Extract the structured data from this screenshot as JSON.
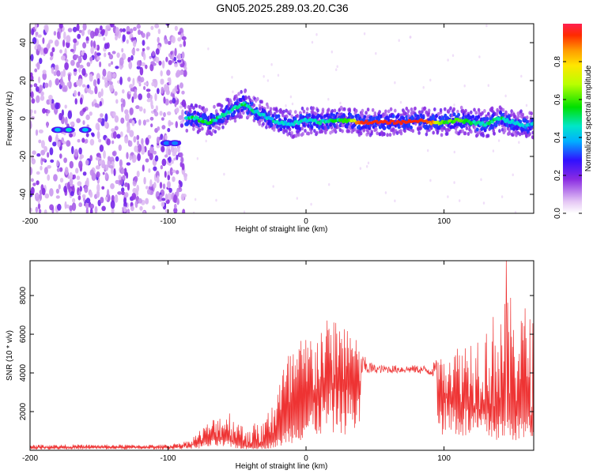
{
  "title": "GN05.2025.289.03.20.C36",
  "chart_data": [
    {
      "type": "heatmap",
      "name": "spectrogram",
      "xlabel": "Height of straight line (km)",
      "ylabel": "Frequency (Hz)",
      "xlim": [
        -200,
        165
      ],
      "ylim": [
        -50,
        50
      ],
      "xticks": [
        -200,
        -100,
        0,
        100
      ],
      "yticks": [
        -40,
        -20,
        0,
        20,
        40
      ],
      "colorbar": {
        "label": "Normalized spectral amplitude",
        "range": [
          0,
          1
        ],
        "ticks": [
          0.0,
          0.2,
          0.4,
          0.6,
          0.8
        ]
      },
      "noise_region": {
        "x_from": -200,
        "x_to": -87
      },
      "ridge": {
        "x": [
          -87,
          -80,
          -70,
          -60,
          -50,
          -45,
          -40,
          -30,
          -20,
          -10,
          0,
          10,
          20,
          30,
          40,
          50,
          60,
          70,
          80,
          90,
          100,
          110,
          120,
          130,
          140,
          150,
          160,
          165
        ],
        "freq": [
          0,
          0,
          -2,
          2,
          6,
          8,
          5,
          1,
          -2,
          -3,
          -1,
          -2,
          -1,
          -1,
          -2,
          -2,
          -2,
          -2,
          -1,
          -2,
          -2,
          -1,
          -2,
          -3,
          0,
          -2,
          -4,
          -3
        ],
        "amplitude": [
          0.45,
          0.5,
          0.5,
          0.45,
          0.45,
          0.5,
          0.45,
          0.4,
          0.45,
          0.4,
          0.45,
          0.45,
          0.5,
          0.55,
          0.95,
          0.95,
          0.95,
          0.95,
          0.95,
          0.9,
          0.55,
          0.6,
          0.5,
          0.45,
          0.5,
          0.45,
          0.4,
          0.4
        ]
      },
      "extra_blobs": [
        {
          "x": -160,
          "freq": -6,
          "amplitude": 0.4
        },
        {
          "x": -172,
          "freq": -6,
          "amplitude": 0.45
        },
        {
          "x": -180,
          "freq": -6,
          "amplitude": 0.4
        },
        {
          "x": -101,
          "freq": -13,
          "amplitude": 0.35
        },
        {
          "x": -95,
          "freq": -13,
          "amplitude": 0.35
        }
      ]
    },
    {
      "type": "line",
      "name": "snr",
      "xlabel": "Height of straight line (km)",
      "ylabel": "SNR (10 * v/v)",
      "xlim": [
        -200,
        165
      ],
      "ylim": [
        0,
        9800
      ],
      "xticks": [
        -200,
        -100,
        0,
        100
      ],
      "yticks": [
        2000,
        4000,
        6000,
        8000
      ],
      "color": "#ee3333",
      "envelope": {
        "x": [
          -200,
          -150,
          -100,
          -85,
          -75,
          -65,
          -55,
          -45,
          -40,
          -30,
          -20,
          -10,
          0,
          10,
          20,
          30,
          40,
          50,
          60,
          70,
          80,
          90,
          100,
          110,
          120,
          130,
          140,
          150,
          160,
          165
        ],
        "base": [
          150,
          150,
          150,
          250,
          400,
          600,
          500,
          200,
          200,
          250,
          600,
          1500,
          2000,
          2800,
          3200,
          3200,
          3200,
          3800,
          3800,
          3800,
          3800,
          3600,
          3000,
          2500,
          2200,
          2000,
          1800,
          1800,
          1800,
          1800
        ],
        "top": [
          300,
          300,
          300,
          500,
          1200,
          1800,
          2100,
          1200,
          1400,
          1500,
          4000,
          5500,
          6000,
          6500,
          7000,
          7000,
          5000,
          4400,
          4400,
          4400,
          4400,
          4400,
          5000,
          5500,
          6000,
          6500,
          7500,
          8000,
          7500,
          7000
        ]
      },
      "peak": {
        "x": 145,
        "y": 9800
      }
    }
  ]
}
